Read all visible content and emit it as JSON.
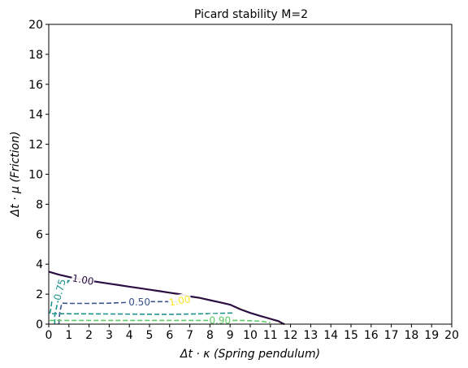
{
  "chart_data": {
    "type": "contour",
    "title": "Picard stability  M=2",
    "xlabel": "Δt · κ (Spring pendulum)",
    "ylabel": "Δt · μ (Friction)",
    "xlim": [
      0,
      20
    ],
    "ylim": [
      0,
      20
    ],
    "xticks": [
      "0",
      "1",
      "2",
      "3",
      "4",
      "5",
      "6",
      "7",
      "8",
      "9",
      "10",
      "11",
      "12",
      "13",
      "14",
      "15",
      "16",
      "17",
      "18",
      "19",
      "20"
    ],
    "yticks": [
      "0",
      "2",
      "4",
      "6",
      "8",
      "10",
      "12",
      "14",
      "16",
      "18",
      "20"
    ],
    "grid": false,
    "stability_boundary": {
      "color": "#2b0f44",
      "points": [
        [
          0,
          3.5
        ],
        [
          0.5,
          3.3
        ],
        [
          1,
          3.15
        ],
        [
          1.5,
          3.0
        ],
        [
          2,
          2.9
        ],
        [
          2.5,
          2.8
        ],
        [
          3,
          2.7
        ],
        [
          3.5,
          2.6
        ],
        [
          4,
          2.5
        ],
        [
          4.5,
          2.4
        ],
        [
          5,
          2.3
        ],
        [
          5.5,
          2.2
        ],
        [
          6,
          2.1
        ],
        [
          6.5,
          2.0
        ],
        [
          7,
          1.85
        ],
        [
          7.5,
          1.75
        ],
        [
          8,
          1.6
        ],
        [
          8.5,
          1.45
        ],
        [
          9,
          1.3
        ],
        [
          9.5,
          1.0
        ],
        [
          10,
          0.75
        ],
        [
          10.5,
          0.55
        ],
        [
          11,
          0.35
        ],
        [
          11.4,
          0.2
        ],
        [
          11.6,
          0.05
        ],
        [
          11.7,
          0
        ]
      ]
    },
    "contours": [
      {
        "level": "0.50",
        "color": "#3b528b",
        "dashed": true,
        "points": [
          [
            0.5,
            0
          ],
          [
            0.55,
            0.8
          ],
          [
            0.65,
            1.4
          ],
          [
            1,
            1.38
          ],
          [
            2,
            1.38
          ],
          [
            3,
            1.4
          ],
          [
            4,
            1.45
          ],
          [
            5,
            1.5
          ],
          [
            6,
            1.5
          ],
          [
            7,
            1.45
          ]
        ],
        "label_at": [
          4.5,
          1.47
        ]
      },
      {
        "level": "0.75",
        "color": "#21918c",
        "dashed": true,
        "points": [
          [
            0.3,
            0
          ],
          [
            0.3,
            0.6
          ],
          [
            0.45,
            1.5
          ],
          [
            0.7,
            2.4
          ],
          [
            1.0,
            2.9
          ],
          [
            0.4,
            2.9
          ],
          [
            0.2,
            2.0
          ],
          [
            0.1,
            1.0
          ],
          [
            0.05,
            0.7
          ],
          [
            3,
            0.68
          ],
          [
            6,
            0.65
          ],
          [
            8,
            0.7
          ],
          [
            9.2,
            0.75
          ]
        ],
        "label_at": [
          0.55,
          2.3
        ]
      },
      {
        "level": "0.90",
        "color": "#5ec962",
        "dashed": true,
        "points": [
          [
            0.05,
            0.25
          ],
          [
            1,
            0.25
          ],
          [
            3,
            0.25
          ],
          [
            5,
            0.25
          ],
          [
            7,
            0.25
          ],
          [
            8.5,
            0.25
          ],
          [
            9.5,
            0.25
          ],
          [
            10.5,
            0.2
          ],
          [
            11,
            0.1
          ]
        ],
        "label_at": [
          8.5,
          0.25
        ]
      },
      {
        "level": "1.00",
        "color": "#fde725",
        "dashed": true,
        "points": [
          [
            0.8,
            3.2
          ],
          [
            1.2,
            3.05
          ],
          [
            2,
            2.9
          ],
          [
            3,
            2.7
          ],
          [
            4,
            2.5
          ],
          [
            5,
            2.3
          ],
          [
            6,
            2.08
          ],
          [
            7,
            1.85
          ],
          [
            8,
            1.6
          ],
          [
            9,
            1.3
          ],
          [
            10,
            0.75
          ],
          [
            11,
            0.35
          ],
          [
            11.6,
            0.05
          ]
        ],
        "label_at": [
          6.5,
          1.55
        ]
      }
    ],
    "contour_labels": [
      {
        "text": "1.00",
        "color": "#2b0f44",
        "at": [
          1.7,
          2.95
        ],
        "rotate": 10
      },
      {
        "text": "1.00",
        "color": "#fde725",
        "at": [
          6.5,
          1.55
        ],
        "rotate": -10
      },
      {
        "text": "0.50",
        "color": "#3b528b",
        "at": [
          4.5,
          1.47
        ],
        "rotate": 0
      },
      {
        "text": "0.75",
        "color": "#21918c",
        "at": [
          0.55,
          2.3
        ],
        "rotate": -75
      },
      {
        "text": "0.90",
        "color": "#5ec962",
        "at": [
          8.5,
          0.25
        ],
        "rotate": 0
      }
    ]
  }
}
